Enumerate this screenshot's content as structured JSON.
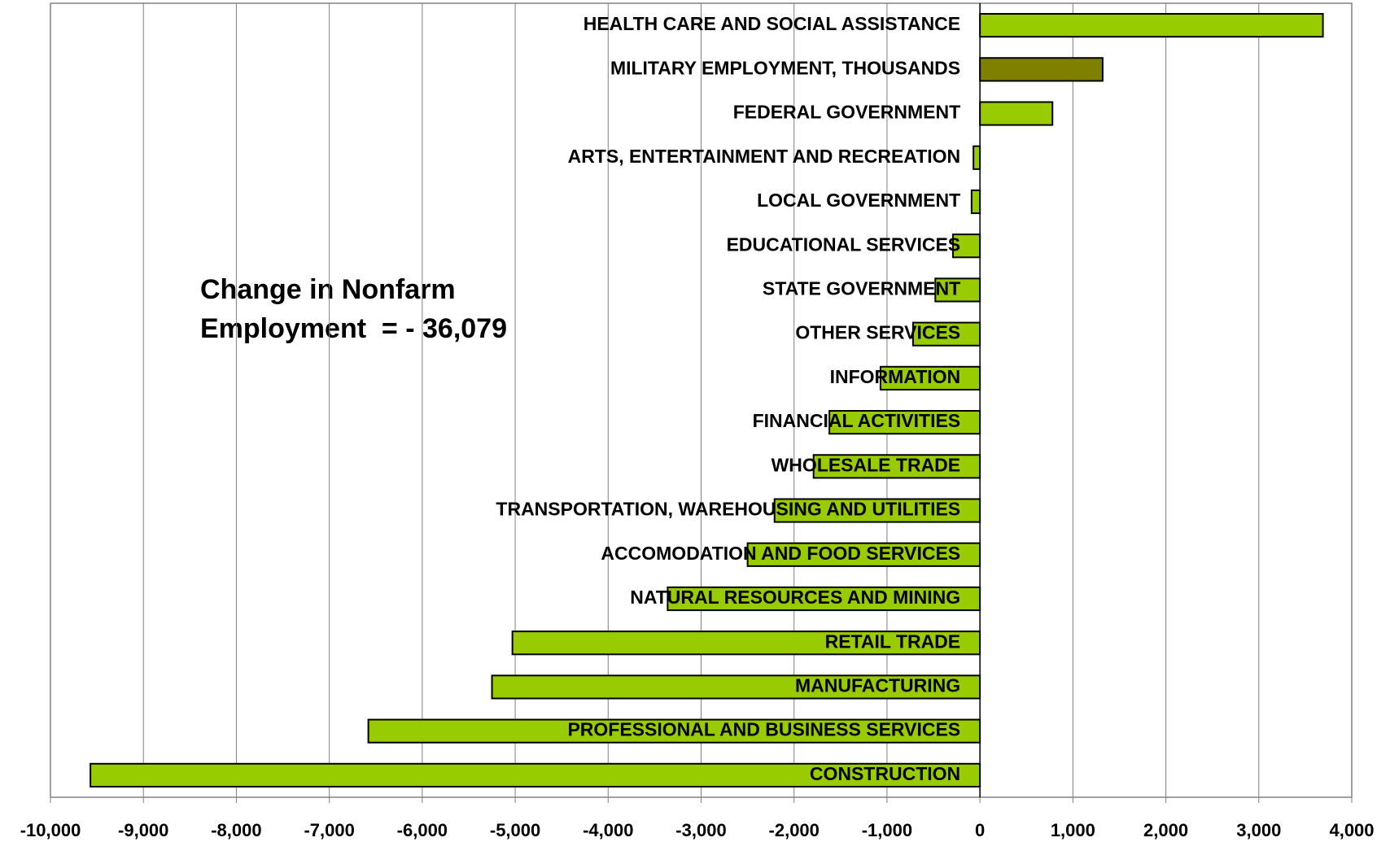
{
  "chart_data": {
    "type": "bar",
    "orientation": "horizontal",
    "annotation": [
      "Change in Nonfarm",
      "Employment  = - 36,079"
    ],
    "categories": [
      "HEALTH CARE AND SOCIAL ASSISTANCE",
      "MILITARY EMPLOYMENT, THOUSANDS",
      "FEDERAL GOVERNMENT",
      "ARTS, ENTERTAINMENT AND RECREATION",
      "LOCAL GOVERNMENT",
      "EDUCATIONAL SERVICES",
      "STATE GOVERNMENT",
      "OTHER SERVICES",
      "INFORMATION",
      "FINANCIAL ACTIVITIES",
      "WHOLESALE TRADE",
      "TRANSPORTATION, WAREHOUSING AND UTILITIES",
      "ACCOMODATION AND FOOD SERVICES",
      "NATURAL RESOURCES AND MINING",
      "RETAIL TRADE",
      "MANUFACTURING",
      "PROFESSIONAL AND BUSINESS SERVICES",
      "CONSTRUCTION"
    ],
    "values": [
      3690,
      1320,
      780,
      -70,
      -90,
      -290,
      -480,
      -720,
      -1070,
      -1620,
      -1790,
      -2210,
      -2500,
      -3360,
      -5030,
      -5250,
      -6580,
      -9570
    ],
    "colors": [
      "#99cc00",
      "#808000",
      "#99cc00",
      "#99cc00",
      "#99cc00",
      "#99cc00",
      "#99cc00",
      "#99cc00",
      "#99cc00",
      "#99cc00",
      "#99cc00",
      "#99cc00",
      "#99cc00",
      "#99cc00",
      "#99cc00",
      "#99cc00",
      "#99cc00",
      "#99cc00"
    ],
    "xlim": [
      -10000,
      4000
    ],
    "xticks": [
      {
        "value": -10000,
        "label": "-10,000"
      },
      {
        "value": -9000,
        "label": "-9,000"
      },
      {
        "value": -8000,
        "label": "-8,000"
      },
      {
        "value": -7000,
        "label": "-7,000"
      },
      {
        "value": -6000,
        "label": "-6,000"
      },
      {
        "value": -5000,
        "label": "-5,000"
      },
      {
        "value": -4000,
        "label": "-4,000"
      },
      {
        "value": -3000,
        "label": "-3,000"
      },
      {
        "value": -2000,
        "label": "-2,000"
      },
      {
        "value": -1000,
        "label": "-1,000"
      },
      0,
      {
        "value": 1000,
        "label": "1,000"
      },
      {
        "value": 2000,
        "label": "2,000"
      },
      {
        "value": 3000,
        "label": "3,000"
      },
      {
        "value": 4000,
        "label": "4,000"
      }
    ],
    "grid": true
  }
}
